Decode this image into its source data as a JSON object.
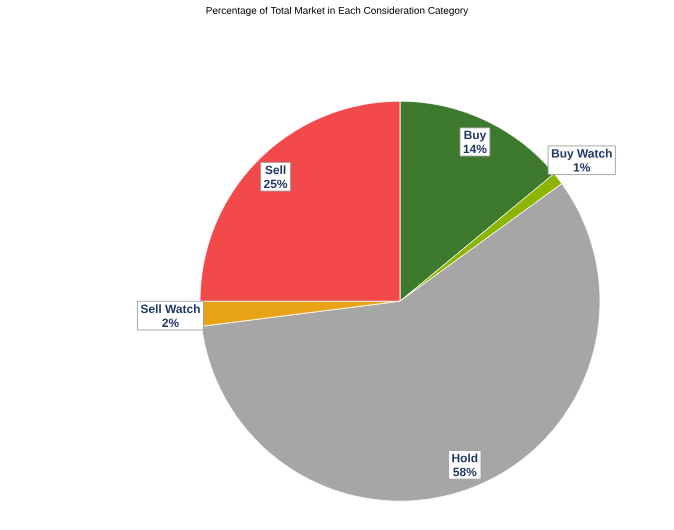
{
  "chart_data": {
    "type": "pie",
    "title": "Percentage of Total Market in Each Consideration Category",
    "categories": [
      "Buy",
      "Buy Watch",
      "Hold",
      "Sell Watch",
      "Sell"
    ],
    "values": [
      14,
      1,
      58,
      2,
      25
    ],
    "value_labels": [
      "14%",
      "1%",
      "58%",
      "2%",
      "25%"
    ],
    "colors": [
      "#3d7a2e",
      "#8cb400",
      "#a6a6a6",
      "#e8a317",
      "#f24a4a"
    ]
  }
}
